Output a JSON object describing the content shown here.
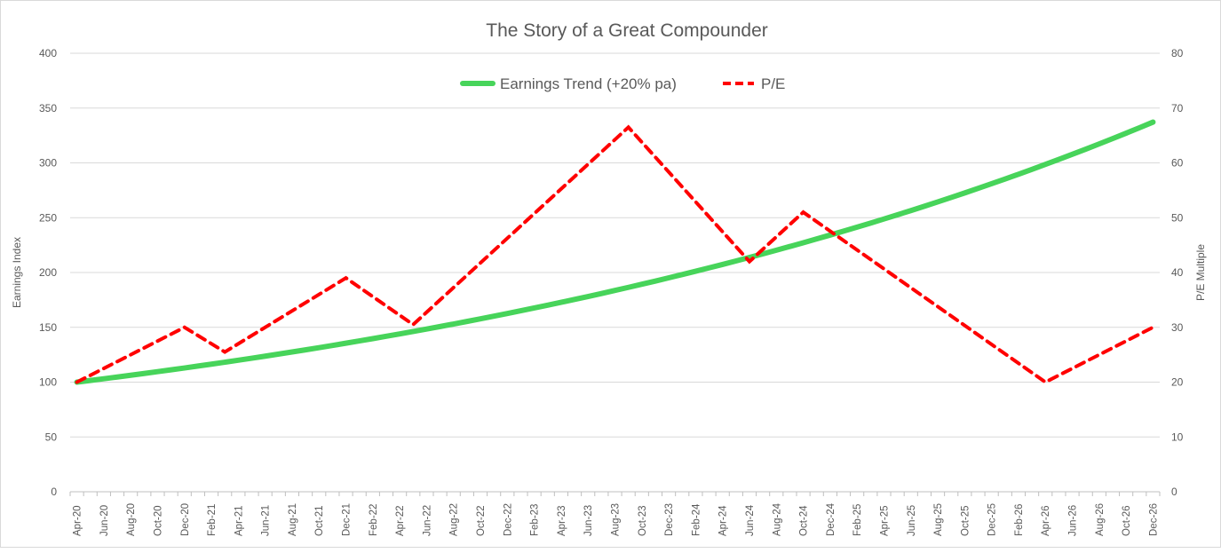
{
  "chart_data": {
    "type": "line",
    "title": "The Story of a Great Compounder",
    "ylabel": "Earnings Index",
    "y2label": "P/E Multiple",
    "ylim": [
      0,
      400
    ],
    "y_ticks": [
      "0",
      "50",
      "100",
      "150",
      "200",
      "250",
      "300",
      "350",
      "400"
    ],
    "y2lim": [
      0,
      80
    ],
    "y2_ticks": [
      "0",
      "10",
      "20",
      "30",
      "40",
      "50",
      "60",
      "70",
      "80"
    ],
    "grid": true,
    "legend_position": "top-center",
    "x_start": "Apr-20",
    "x_end": "Dec-26",
    "month_count": 81,
    "x_tick_labels": [
      "Apr-20",
      "Jun-20",
      "Aug-20",
      "Oct-20",
      "Dec-20",
      "Feb-21",
      "Apr-21",
      "Jun-21",
      "Aug-21",
      "Oct-21",
      "Dec-21",
      "Feb-22",
      "Apr-22",
      "Jun-22",
      "Aug-22",
      "Oct-22",
      "Dec-22",
      "Feb-23",
      "Apr-23",
      "Jun-23",
      "Aug-23",
      "Oct-23",
      "Dec-23",
      "Feb-24",
      "Apr-24",
      "Jun-24",
      "Aug-24",
      "Oct-24",
      "Dec-24",
      "Feb-25",
      "Apr-25",
      "Jun-25",
      "Aug-25",
      "Oct-25",
      "Dec-25",
      "Feb-26",
      "Apr-26",
      "Jun-26",
      "Aug-26",
      "Oct-26",
      "Dec-26"
    ],
    "series": [
      {
        "name": "Earnings Trend (+20% pa)",
        "axis": "left",
        "color": "#47d45a",
        "style": "solid",
        "start_value": 100,
        "annual_growth": 0.2,
        "end_value": 337
      },
      {
        "name": "P/E",
        "axis": "right",
        "color": "#ff0000",
        "style": "dashed",
        "points": [
          {
            "month_index": 0,
            "label": "Apr-20",
            "value": 20
          },
          {
            "month_index": 8,
            "label": "Dec-20",
            "value": 30
          },
          {
            "month_index": 11,
            "label": "Mar-21",
            "value": 25.5
          },
          {
            "month_index": 20,
            "label": "Dec-21",
            "value": 39
          },
          {
            "month_index": 25,
            "label": "May-22",
            "value": 30.5
          },
          {
            "month_index": 41,
            "label": "Sep-23",
            "value": 66.5
          },
          {
            "month_index": 50,
            "label": "Jun-24",
            "value": 42
          },
          {
            "month_index": 54,
            "label": "Oct-24",
            "value": 51
          },
          {
            "month_index": 72,
            "label": "Apr-26",
            "value": 20
          },
          {
            "month_index": 80,
            "label": "Dec-26",
            "value": 30
          }
        ]
      }
    ]
  }
}
